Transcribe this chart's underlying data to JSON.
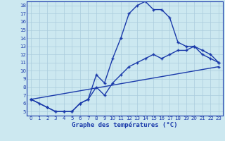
{
  "xlabel": "Graphe des températures (°C)",
  "xlim": [
    -0.5,
    23.5
  ],
  "ylim": [
    4.5,
    18.5
  ],
  "xticks": [
    0,
    1,
    2,
    3,
    4,
    5,
    6,
    7,
    8,
    9,
    10,
    11,
    12,
    13,
    14,
    15,
    16,
    17,
    18,
    19,
    20,
    21,
    22,
    23
  ],
  "yticks": [
    5,
    6,
    7,
    8,
    9,
    10,
    11,
    12,
    13,
    14,
    15,
    16,
    17,
    18
  ],
  "background_color": "#cce8f0",
  "grid_color": "#aaccdd",
  "line_color": "#1a3aaa",
  "line1_x": [
    0,
    1,
    2,
    3,
    4,
    5,
    6,
    7,
    8,
    9,
    10,
    11,
    12,
    13,
    14,
    15,
    16,
    17,
    18,
    19,
    20,
    21,
    22,
    23
  ],
  "line1_y": [
    6.5,
    6.0,
    5.5,
    5.0,
    5.0,
    5.0,
    6.0,
    6.5,
    9.5,
    8.5,
    11.5,
    14.0,
    17.0,
    18.0,
    18.5,
    17.5,
    17.5,
    16.5,
    13.5,
    13.0,
    13.0,
    12.0,
    11.5,
    11.0
  ],
  "line2_x": [
    0,
    2,
    3,
    4,
    5,
    6,
    7,
    8,
    9,
    10,
    11,
    12,
    13,
    14,
    15,
    16,
    17,
    18,
    19,
    20,
    21,
    22,
    23
  ],
  "line2_y": [
    6.5,
    5.5,
    5.0,
    5.0,
    5.0,
    6.0,
    6.5,
    8.0,
    7.0,
    8.5,
    9.5,
    10.5,
    11.0,
    11.5,
    12.0,
    11.5,
    12.0,
    12.5,
    12.5,
    13.0,
    12.5,
    12.0,
    11.0
  ],
  "line3_x": [
    0,
    23
  ],
  "line3_y": [
    6.5,
    10.5
  ]
}
